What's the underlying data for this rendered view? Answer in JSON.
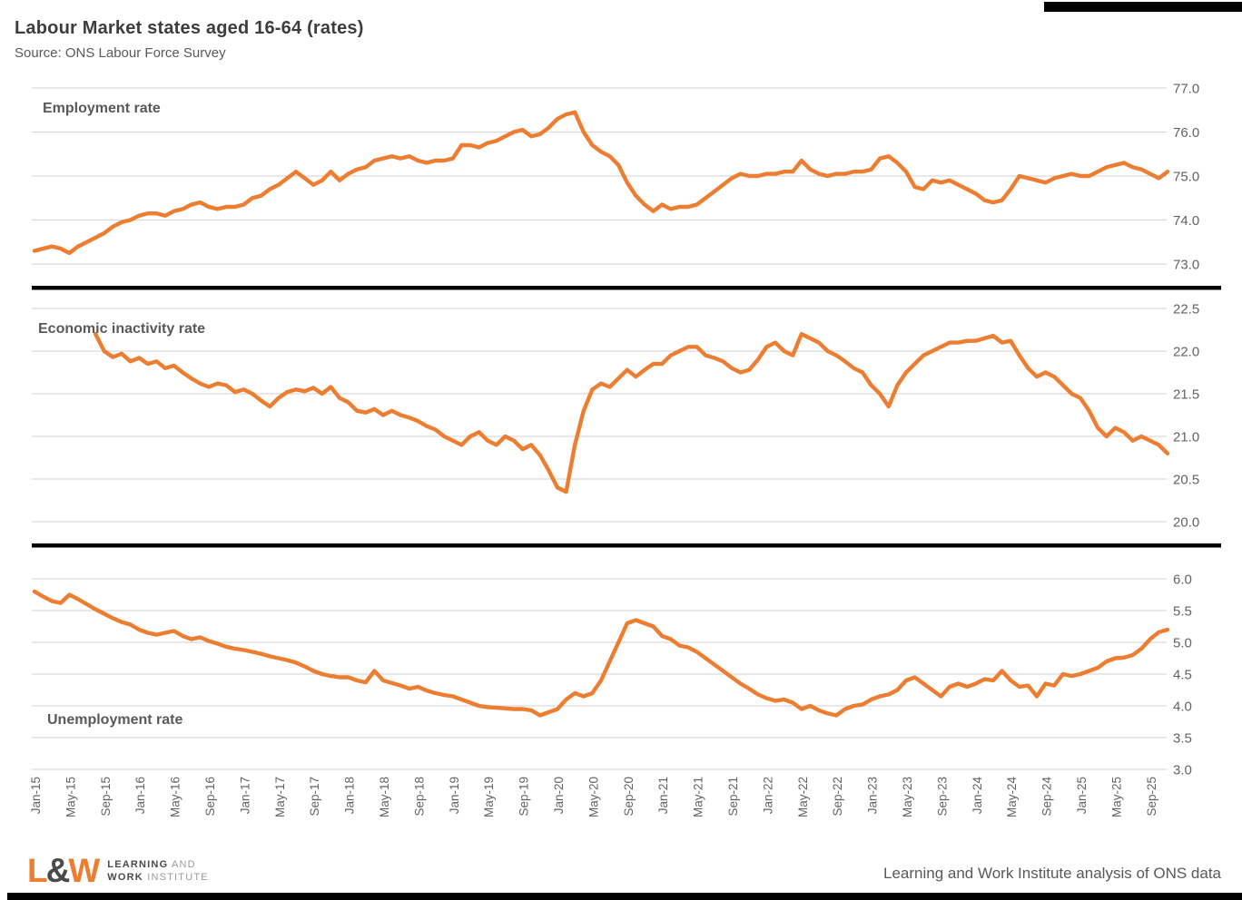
{
  "header": {
    "title": "Labour Market states aged 16-64 (rates)",
    "subtitle": "Source: ONS Labour Force Survey"
  },
  "footer": {
    "logo_l": "L",
    "logo_amp": "&",
    "logo_w": "W",
    "logo_line1_bold": "LEARNING",
    "logo_line1_light": "AND",
    "logo_line2_bold": "WORK",
    "logo_line2_light": "INSTITUTE",
    "credit": "Learning and Work Institute analysis of ONS data"
  },
  "colors": {
    "line": "#ED7D31",
    "grid": "#D9D9D9",
    "axis_text": "#636363",
    "panel_title": "#595959",
    "separator": "#000000"
  },
  "chart_data": {
    "type": "line",
    "x_unit": "month",
    "x_start": "Jan-15",
    "x_end": "Nov-25",
    "months_total": 131,
    "grid": "horizontal-only",
    "legend": "none",
    "x_tick_labels": [
      "Jan-15",
      "May-15",
      "Sep-15",
      "Jan-16",
      "May-16",
      "Sep-16",
      "Jan-17",
      "May-17",
      "Sep-17",
      "Jan-18",
      "May-18",
      "Sep-18",
      "Jan-19",
      "May-19",
      "Sep-19",
      "Jan-20",
      "May-20",
      "Sep-20",
      "Jan-21",
      "May-21",
      "Sep-21",
      "Jan-22",
      "May-22",
      "Sep-22",
      "Jan-23",
      "May-23",
      "Sep-23",
      "Jan-24",
      "May-24",
      "Sep-24",
      "Jan-25",
      "May-25",
      "Sep-25"
    ],
    "x_tick_month_indices": [
      0,
      4,
      8,
      12,
      16,
      20,
      24,
      28,
      32,
      36,
      40,
      44,
      48,
      52,
      56,
      60,
      64,
      68,
      72,
      76,
      80,
      84,
      88,
      92,
      96,
      100,
      104,
      108,
      112,
      116,
      120,
      124,
      128
    ],
    "panels": [
      {
        "title": "Employment rate",
        "ylim": [
          73.0,
          77.0
        ],
        "y_ticks": [
          "77.0",
          "76.0",
          "75.0",
          "74.0",
          "73.0"
        ],
        "values": [
          73.3,
          73.35,
          73.4,
          73.35,
          73.25,
          73.4,
          73.5,
          73.6,
          73.7,
          73.85,
          73.95,
          74.0,
          74.1,
          74.15,
          74.15,
          74.1,
          74.2,
          74.25,
          74.35,
          74.4,
          74.3,
          74.25,
          74.3,
          74.3,
          74.35,
          74.5,
          74.55,
          74.7,
          74.8,
          74.95,
          75.1,
          74.95,
          74.8,
          74.9,
          75.1,
          74.9,
          75.05,
          75.15,
          75.2,
          75.35,
          75.4,
          75.45,
          75.4,
          75.45,
          75.35,
          75.3,
          75.35,
          75.35,
          75.4,
          75.7,
          75.7,
          75.65,
          75.75,
          75.8,
          75.9,
          76.0,
          76.05,
          75.9,
          75.95,
          76.1,
          76.3,
          76.4,
          76.45,
          76.0,
          75.7,
          75.55,
          75.45,
          75.25,
          74.85,
          74.55,
          74.35,
          74.2,
          74.35,
          74.25,
          74.3,
          74.3,
          74.35,
          74.5,
          74.65,
          74.8,
          74.95,
          75.05,
          75.0,
          75.0,
          75.05,
          75.05,
          75.1,
          75.1,
          75.35,
          75.15,
          75.05,
          75.0,
          75.05,
          75.05,
          75.1,
          75.1,
          75.15,
          75.4,
          75.45,
          75.3,
          75.1,
          74.75,
          74.7,
          74.9,
          74.85,
          74.9,
          74.8,
          74.7,
          74.6,
          74.45,
          74.4,
          74.45,
          74.7,
          75.0,
          74.95,
          74.9,
          74.85,
          74.95,
          75.0,
          75.05,
          75.0,
          75.0,
          75.1,
          75.2,
          75.25,
          75.3,
          75.2,
          75.15,
          75.05,
          74.95,
          75.1
        ]
      },
      {
        "title": "Economic inactivity rate",
        "ylim": [
          20.0,
          22.5
        ],
        "y_ticks": [
          "22.5",
          "22.0",
          "21.5",
          "21.0",
          "20.5",
          "20.0"
        ],
        "values": [
          null,
          null,
          null,
          null,
          null,
          null,
          null,
          22.2,
          22.0,
          21.93,
          21.97,
          21.88,
          21.92,
          21.85,
          21.88,
          21.8,
          21.83,
          21.75,
          21.68,
          21.62,
          21.58,
          21.62,
          21.6,
          21.52,
          21.55,
          21.5,
          21.42,
          21.35,
          21.45,
          21.52,
          21.55,
          21.53,
          21.57,
          21.5,
          21.58,
          21.45,
          21.4,
          21.3,
          21.28,
          21.32,
          21.25,
          21.3,
          21.25,
          21.22,
          21.18,
          21.12,
          21.08,
          21.0,
          20.95,
          20.9,
          21.0,
          21.05,
          20.95,
          20.9,
          21.0,
          20.95,
          20.85,
          20.9,
          20.78,
          20.6,
          20.4,
          20.35,
          20.9,
          21.3,
          21.55,
          21.62,
          21.58,
          21.68,
          21.78,
          21.7,
          21.78,
          21.85,
          21.85,
          21.95,
          22.0,
          22.05,
          22.05,
          21.95,
          21.92,
          21.88,
          21.8,
          21.75,
          21.78,
          21.9,
          22.05,
          22.1,
          22.0,
          21.95,
          22.2,
          22.15,
          22.1,
          22.0,
          21.95,
          21.88,
          21.8,
          21.75,
          21.6,
          21.5,
          21.35,
          21.6,
          21.75,
          21.85,
          21.95,
          22.0,
          22.05,
          22.1,
          22.1,
          22.12,
          22.12,
          22.15,
          22.18,
          22.1,
          22.12,
          21.95,
          21.8,
          21.7,
          21.75,
          21.7,
          21.6,
          21.5,
          21.45,
          21.3,
          21.1,
          21.0,
          21.1,
          21.05,
          20.95,
          21.0,
          20.95,
          20.9,
          20.8
        ]
      },
      {
        "title": "Unemployment rate",
        "ylim": [
          3.0,
          6.0
        ],
        "y_ticks": [
          "6.0",
          "5.5",
          "5.0",
          "4.5",
          "4.0",
          "3.5",
          "3.0"
        ],
        "values": [
          5.8,
          5.72,
          5.65,
          5.62,
          5.75,
          5.68,
          5.6,
          5.52,
          5.45,
          5.38,
          5.32,
          5.28,
          5.2,
          5.15,
          5.12,
          5.15,
          5.18,
          5.1,
          5.05,
          5.08,
          5.02,
          4.98,
          4.93,
          4.9,
          4.88,
          4.85,
          4.82,
          4.78,
          4.75,
          4.72,
          4.68,
          4.62,
          4.55,
          4.5,
          4.47,
          4.45,
          4.45,
          4.4,
          4.37,
          4.55,
          4.4,
          4.36,
          4.32,
          4.27,
          4.3,
          4.24,
          4.2,
          4.17,
          4.15,
          4.1,
          4.05,
          4.0,
          3.98,
          3.97,
          3.96,
          3.95,
          3.95,
          3.93,
          3.85,
          3.9,
          3.95,
          4.1,
          4.2,
          4.15,
          4.2,
          4.4,
          4.7,
          5.0,
          5.3,
          5.35,
          5.3,
          5.25,
          5.1,
          5.05,
          4.95,
          4.92,
          4.85,
          4.75,
          4.65,
          4.55,
          4.45,
          4.35,
          4.27,
          4.18,
          4.12,
          4.08,
          4.1,
          4.05,
          3.95,
          4.0,
          3.93,
          3.88,
          3.85,
          3.95,
          4.0,
          4.02,
          4.1,
          4.15,
          4.18,
          4.25,
          4.4,
          4.45,
          4.35,
          4.25,
          4.15,
          4.3,
          4.35,
          4.3,
          4.35,
          4.42,
          4.4,
          4.55,
          4.4,
          4.3,
          4.32,
          4.15,
          4.35,
          4.32,
          4.5,
          4.47,
          4.5,
          4.55,
          4.6,
          4.7,
          4.75,
          4.76,
          4.8,
          4.9,
          5.05,
          5.16,
          5.2
        ]
      }
    ]
  }
}
